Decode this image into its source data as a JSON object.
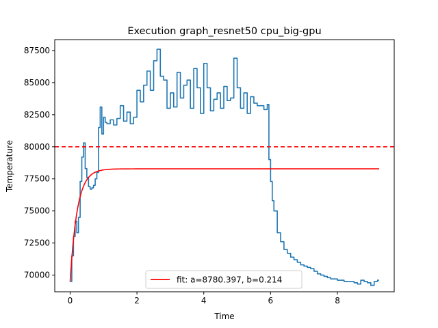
{
  "chart_data": {
    "type": "line",
    "title": "Execution graph_resnet50 cpu_big-gpu",
    "xlabel": "Time",
    "ylabel": "Temperature",
    "xlim": [
      -0.46,
      9.7
    ],
    "ylim": [
      68700,
      88350
    ],
    "x_ticks": [
      0,
      2,
      4,
      6,
      8
    ],
    "y_ticks": [
      70000,
      72500,
      75000,
      77500,
      80000,
      82500,
      85000,
      87500
    ],
    "grid": false,
    "legend_placement": "lower-center",
    "colors": {
      "measured": "#1f77b4",
      "fit": "#ff0000",
      "threshold": "#ff0000"
    },
    "series": [
      {
        "key": "measured",
        "x": [
          0.0,
          0.05,
          0.1,
          0.15,
          0.2,
          0.25,
          0.3,
          0.35,
          0.4,
          0.45,
          0.5,
          0.55,
          0.6,
          0.65,
          0.7,
          0.75,
          0.8,
          0.85,
          0.9,
          0.95,
          1.0,
          1.05,
          1.1,
          1.2,
          1.3,
          1.4,
          1.5,
          1.6,
          1.7,
          1.8,
          1.9,
          2.0,
          2.1,
          2.2,
          2.3,
          2.4,
          2.5,
          2.6,
          2.7,
          2.8,
          2.9,
          3.0,
          3.1,
          3.2,
          3.3,
          3.4,
          3.5,
          3.6,
          3.7,
          3.8,
          3.9,
          4.0,
          4.1,
          4.2,
          4.3,
          4.4,
          4.5,
          4.6,
          4.7,
          4.8,
          4.9,
          5.0,
          5.1,
          5.2,
          5.3,
          5.4,
          5.5,
          5.6,
          5.7,
          5.8,
          5.9,
          5.95,
          6.0,
          6.05,
          6.1,
          6.2,
          6.3,
          6.4,
          6.5,
          6.6,
          6.7,
          6.8,
          6.9,
          7.0,
          7.1,
          7.2,
          7.3,
          7.4,
          7.5,
          7.6,
          7.7,
          7.8,
          7.9,
          8.0,
          8.1,
          8.2,
          8.3,
          8.4,
          8.5,
          8.6,
          8.7,
          8.8,
          8.9,
          9.0,
          9.1,
          9.2,
          9.25
        ],
        "y": [
          69500,
          71500,
          73000,
          74200,
          73300,
          74500,
          77300,
          79200,
          80300,
          78300,
          77600,
          76900,
          76700,
          76800,
          77000,
          77500,
          78000,
          81500,
          83100,
          81000,
          82300,
          81900,
          81800,
          82100,
          81700,
          82200,
          83200,
          82000,
          82700,
          81800,
          82300,
          84400,
          83500,
          84800,
          85900,
          84400,
          86700,
          87600,
          85500,
          85200,
          83000,
          84200,
          83100,
          85800,
          83800,
          84800,
          85200,
          83000,
          86100,
          84600,
          82600,
          86500,
          84600,
          82800,
          83700,
          84200,
          83000,
          84700,
          83600,
          83800,
          86900,
          84600,
          83000,
          84200,
          82600,
          83900,
          83400,
          83200,
          83200,
          82900,
          83300,
          79000,
          77300,
          75800,
          75000,
          73300,
          72600,
          72000,
          71700,
          71400,
          71200,
          71000,
          70800,
          70700,
          70600,
          70500,
          70300,
          70100,
          70000,
          69900,
          69800,
          69700,
          69700,
          69600,
          69600,
          69500,
          69500,
          69500,
          69400,
          69300,
          69600,
          69500,
          69400,
          69200,
          69500,
          69600,
          69600
        ]
      },
      {
        "key": "fit",
        "name": "fit: a=8780.397, b=0.214",
        "a": 8780.397,
        "b": 0.214,
        "baseline": 69500,
        "x_range": [
          0,
          9.25
        ]
      }
    ],
    "threshold": {
      "y": 80000,
      "style": "dashed"
    }
  }
}
